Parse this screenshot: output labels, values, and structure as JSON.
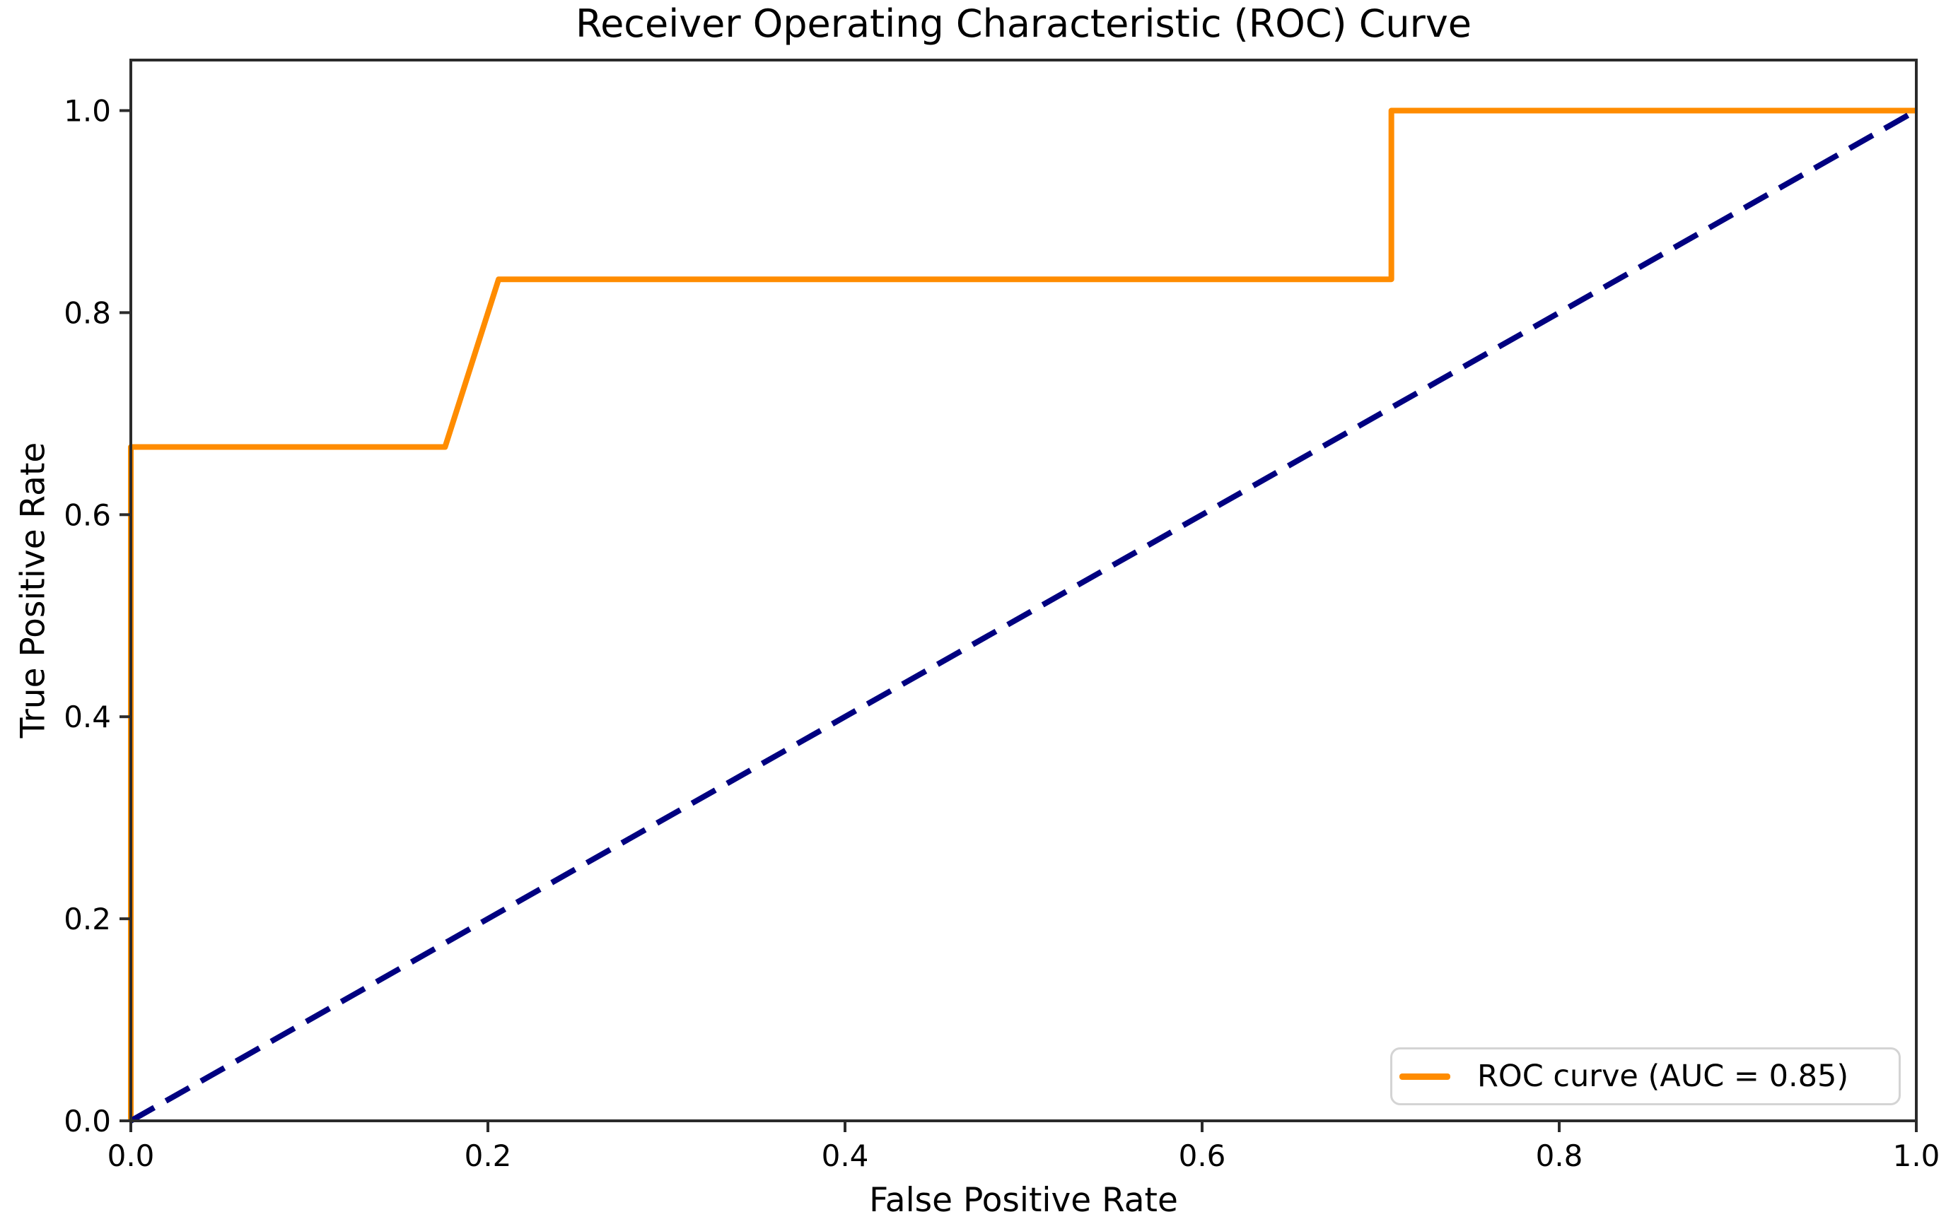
{
  "chart_data": {
    "type": "line",
    "title": "Receiver Operating Characteristic (ROC) Curve",
    "xlabel": "False Positive Rate",
    "ylabel": "True Positive Rate",
    "xlim": [
      0.0,
      1.0
    ],
    "ylim": [
      0.0,
      1.05
    ],
    "grid": false,
    "x_ticks": [
      0.0,
      0.2,
      0.4,
      0.6,
      0.8,
      1.0
    ],
    "x_tick_labels": [
      "0.0",
      "0.2",
      "0.4",
      "0.6",
      "0.8",
      "1.0"
    ],
    "y_ticks": [
      0.0,
      0.2,
      0.4,
      0.6,
      0.8,
      1.0
    ],
    "y_tick_labels": [
      "0.0",
      "0.2",
      "0.4",
      "0.6",
      "0.8",
      "1.0"
    ],
    "legend_position": "lower right",
    "auc": 0.85,
    "series": [
      {
        "name": "ROC curve (AUC = 0.85)",
        "color": "#FF8C00",
        "style": "solid",
        "linewidth": 8,
        "in_legend": true,
        "x": [
          0.0,
          0.0,
          0.176,
          0.206,
          0.706,
          0.706,
          1.0
        ],
        "y": [
          0.0,
          0.667,
          0.667,
          0.833,
          0.833,
          1.0,
          1.0
        ]
      },
      {
        "name": "chance-diagonal",
        "color": "#000080",
        "style": "dashed",
        "linewidth": 8,
        "in_legend": false,
        "x": [
          0.0,
          1.0
        ],
        "y": [
          0.0,
          1.0
        ]
      }
    ],
    "axis_style": {
      "spine_color": "#2b2b2b",
      "spine_width": 4,
      "tick_color": "#2b2b2b",
      "tick_length": 16,
      "tick_label_size": 42,
      "text_color": "#000000"
    }
  }
}
